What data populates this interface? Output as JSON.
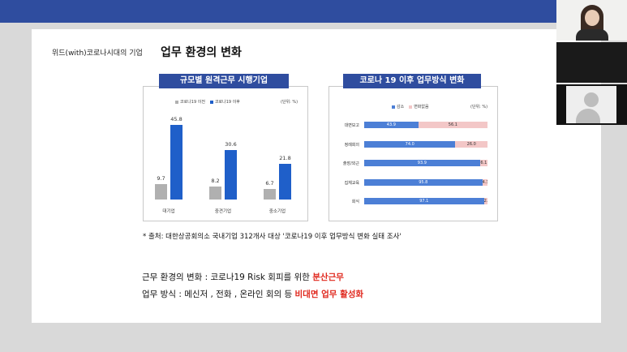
{
  "colors": {
    "blue": "#2f4d9f",
    "bar_gray": "#b0b0b0",
    "bar_blue": "#1f5fc9",
    "seg_decrease": "#4c7fd6",
    "seg_nochange": "#f3c7c7",
    "emphasis_red": "#e0281e"
  },
  "slide": {
    "title_prefix": "위드(with)코로나시대의 기업",
    "title_main": "업무 환경의 변화",
    "source_note": "* 출처: 대한상공회의소 국내기업 312개사 대상 '코로나19 이후 업무방식 변화 실태 조사'",
    "line1_prefix": "근무 환경의 변화 :  코로나19 Risk  회피를 위한 ",
    "line1_highlight": "분산근무",
    "line2_prefix": "업무 방식 : 메신저 , 전화 , 온라인 회의 등 ",
    "line2_highlight": "비대면 업무 활성화"
  },
  "left_chart_head": "규모별 원격근무 시행기업",
  "right_chart_head": "코로나 19 이후 업무방식 변화",
  "chart_data": [
    {
      "type": "bar",
      "title": "규모별 원격근무 시행기업",
      "unit": "(단위: %)",
      "categories": [
        "대기업",
        "중견기업",
        "중소기업"
      ],
      "series": [
        {
          "name": "코로나19 이전",
          "color": "#b0b0b0",
          "values": [
            9.7,
            8.2,
            6.7
          ]
        },
        {
          "name": "코로나19 이후",
          "color": "#1f5fc9",
          "values": [
            45.8,
            30.6,
            21.8
          ]
        }
      ],
      "ylim": [
        0,
        50
      ],
      "legend": "top"
    },
    {
      "type": "bar",
      "orientation": "horizontal-stacked",
      "title": "코로나 19 이후 업무방식 변화",
      "unit": "(단위: %)",
      "categories": [
        "대면보고",
        "정례회의",
        "출장/외근",
        "집체교육",
        "회식"
      ],
      "series": [
        {
          "name": "감소",
          "color": "#4c7fd6",
          "values": [
            43.9,
            74.0,
            93.9,
            95.8,
            97.1
          ]
        },
        {
          "name": "변화없음",
          "color": "#f3c7c7",
          "values": [
            56.1,
            26.0,
            6.1,
            4.3,
            2.9
          ]
        }
      ],
      "xlim": [
        0,
        100
      ],
      "legend": "top"
    }
  ]
}
